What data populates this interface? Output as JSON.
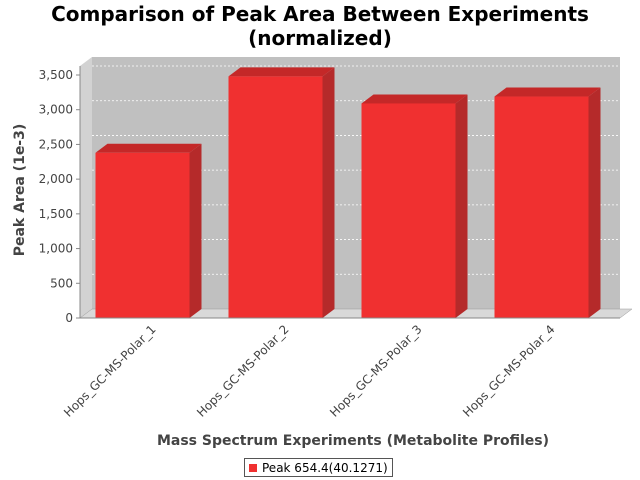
{
  "chart_data": {
    "type": "bar",
    "title_lines": [
      "Comparison of Peak Area Between Experiments",
      "(normalized)"
    ],
    "xlabel": "Mass Spectrum Experiments (Metabolite Profiles)",
    "ylabel": "Peak Area (1e-3)",
    "categories": [
      "Hops_GC-MS-Polar_1",
      "Hops_GC-MS-Polar_2",
      "Hops_GC-MS-Polar_3",
      "Hops_GC-MS-Polar_4"
    ],
    "series": [
      {
        "name": "Peak 654.4(40.1271)",
        "values": [
          2380,
          3480,
          3090,
          3190
        ]
      }
    ],
    "ylim": [
      0,
      3500
    ],
    "yticks": [
      0,
      500,
      1000,
      1500,
      2000,
      2500,
      3000,
      3500
    ],
    "ytick_labels": [
      "0",
      "500",
      "1,000",
      "1,500",
      "2,000",
      "2,500",
      "3,000",
      "3,500"
    ],
    "grid": true,
    "legend_position": "bottom",
    "style": "3d",
    "colors": {
      "bar": "#f03030",
      "bar_top": "#c42828",
      "bar_side": "#b52a2a",
      "plot_bg": "#c0c0c0",
      "floor": "#d9d9d9",
      "wall_side": "#d2d2d2"
    }
  }
}
